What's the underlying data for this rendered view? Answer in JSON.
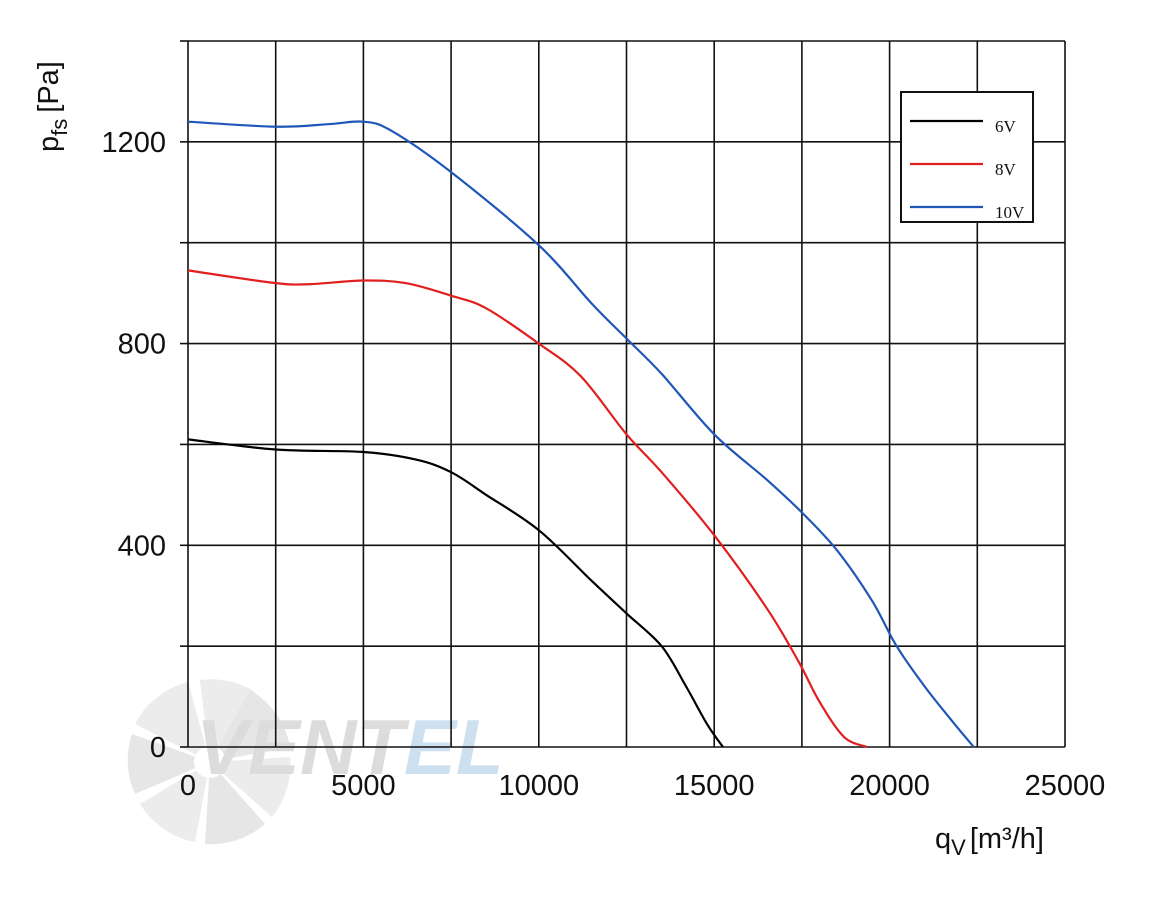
{
  "chart_data": {
    "type": "line",
    "title": "",
    "xlabel": "q",
    "xlabel_sub": "V",
    "xlabel_unit": "[m³/h]",
    "ylabel": "p",
    "ylabel_sub": "fs",
    "ylabel_unit": "[Pa]",
    "xlim": [
      0,
      25000
    ],
    "ylim": [
      0,
      1400
    ],
    "x_ticks": [
      0,
      5000,
      10000,
      15000,
      20000,
      25000
    ],
    "x_tick_labels": [
      "0",
      "5000",
      "10000",
      "15000",
      "20000",
      "25000"
    ],
    "y_ticks": [
      0,
      400,
      800,
      1200
    ],
    "y_tick_labels": [
      "0",
      "400",
      "800",
      "1200"
    ],
    "x_grid": [
      0,
      2500,
      5000,
      7500,
      10000,
      12500,
      15000,
      17500,
      20000,
      22500,
      25000
    ],
    "y_grid": [
      0,
      200,
      400,
      600,
      800,
      1000,
      1200,
      1400
    ],
    "grid": true,
    "legend_position": "top-right",
    "series": [
      {
        "name": "6V",
        "color": "#000000",
        "points": [
          [
            0,
            610
          ],
          [
            2500,
            590
          ],
          [
            5000,
            585
          ],
          [
            6500,
            570
          ],
          [
            7500,
            545
          ],
          [
            8500,
            500
          ],
          [
            10000,
            430
          ],
          [
            11500,
            330
          ],
          [
            12500,
            265
          ],
          [
            13500,
            200
          ],
          [
            14200,
            120
          ],
          [
            14800,
            45
          ],
          [
            15250,
            0
          ]
        ]
      },
      {
        "name": "8V",
        "color": "#e0201e",
        "points": [
          [
            0,
            945
          ],
          [
            2500,
            920
          ],
          [
            3500,
            918
          ],
          [
            5000,
            925
          ],
          [
            6200,
            920
          ],
          [
            7500,
            895
          ],
          [
            8500,
            870
          ],
          [
            10000,
            800
          ],
          [
            11200,
            735
          ],
          [
            12500,
            620
          ],
          [
            13500,
            545
          ],
          [
            15000,
            420
          ],
          [
            16500,
            275
          ],
          [
            17400,
            170
          ],
          [
            18000,
            90
          ],
          [
            18700,
            20
          ],
          [
            19350,
            0
          ]
        ]
      },
      {
        "name": "10V",
        "color": "#1f57b8",
        "points": [
          [
            0,
            1240
          ],
          [
            2500,
            1230
          ],
          [
            4000,
            1235
          ],
          [
            5000,
            1240
          ],
          [
            5800,
            1222
          ],
          [
            7500,
            1140
          ],
          [
            10000,
            995
          ],
          [
            11500,
            880
          ],
          [
            12500,
            810
          ],
          [
            13500,
            740
          ],
          [
            15000,
            620
          ],
          [
            16500,
            530
          ],
          [
            17500,
            465
          ],
          [
            18500,
            390
          ],
          [
            19500,
            290
          ],
          [
            20200,
            200
          ],
          [
            21000,
            120
          ],
          [
            21800,
            50
          ],
          [
            22400,
            0
          ]
        ]
      }
    ]
  },
  "watermark": {
    "text_main": "VENT",
    "text_accent": "EL",
    "color_main": "#dcdcdc",
    "color_accent": "#cde0ef",
    "icon": "fan-icon"
  }
}
